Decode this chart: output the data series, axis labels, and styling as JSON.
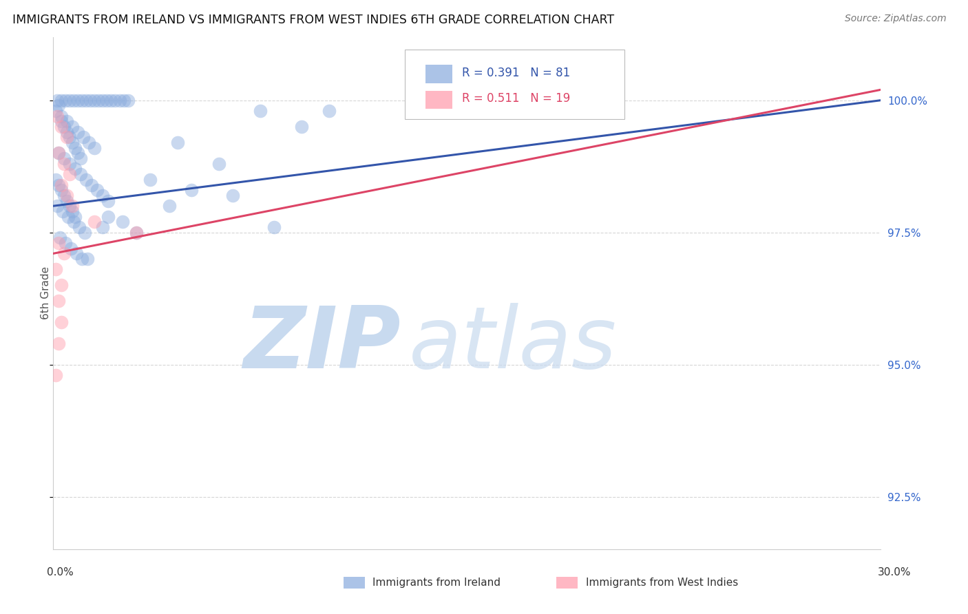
{
  "title": "IMMIGRANTS FROM IRELAND VS IMMIGRANTS FROM WEST INDIES 6TH GRADE CORRELATION CHART",
  "source": "Source: ZipAtlas.com",
  "ylabel": "6th Grade",
  "yticks": [
    92.5,
    95.0,
    97.5,
    100.0
  ],
  "ytick_labels": [
    "92.5%",
    "95.0%",
    "97.5%",
    "100.0%"
  ],
  "xmin": 0.0,
  "xmax": 30.0,
  "ymin": 91.5,
  "ymax": 101.2,
  "blue_R": 0.391,
  "blue_N": 81,
  "pink_R": 0.511,
  "pink_N": 19,
  "blue_color": "#88AADD",
  "pink_color": "#FF99AA",
  "blue_line_color": "#3355AA",
  "pink_line_color": "#DD4466",
  "watermark_zip_color": "#C8DAEF",
  "watermark_atlas_color": "#C8DAEF",
  "legend_label_blue": "Immigrants from Ireland",
  "legend_label_pink": "Immigrants from West Indies",
  "blue_scatter": [
    [
      0.15,
      100.0
    ],
    [
      0.3,
      100.0
    ],
    [
      0.45,
      100.0
    ],
    [
      0.6,
      100.0
    ],
    [
      0.75,
      100.0
    ],
    [
      0.9,
      100.0
    ],
    [
      1.05,
      100.0
    ],
    [
      1.2,
      100.0
    ],
    [
      1.35,
      100.0
    ],
    [
      1.5,
      100.0
    ],
    [
      1.65,
      100.0
    ],
    [
      1.8,
      100.0
    ],
    [
      1.95,
      100.0
    ],
    [
      2.1,
      100.0
    ],
    [
      2.25,
      100.0
    ],
    [
      2.4,
      100.0
    ],
    [
      2.55,
      100.0
    ],
    [
      2.7,
      100.0
    ],
    [
      0.3,
      99.7
    ],
    [
      0.5,
      99.6
    ],
    [
      0.7,
      99.5
    ],
    [
      0.9,
      99.4
    ],
    [
      1.1,
      99.3
    ],
    [
      1.3,
      99.2
    ],
    [
      1.5,
      99.1
    ],
    [
      0.2,
      99.0
    ],
    [
      0.4,
      98.9
    ],
    [
      0.6,
      98.8
    ],
    [
      0.8,
      98.7
    ],
    [
      1.0,
      98.6
    ],
    [
      1.2,
      98.5
    ],
    [
      1.4,
      98.4
    ],
    [
      1.6,
      98.3
    ],
    [
      1.8,
      98.2
    ],
    [
      2.0,
      98.1
    ],
    [
      0.15,
      98.0
    ],
    [
      0.35,
      97.9
    ],
    [
      0.55,
      97.8
    ],
    [
      0.75,
      97.7
    ],
    [
      0.95,
      97.6
    ],
    [
      1.15,
      97.5
    ],
    [
      0.25,
      97.4
    ],
    [
      0.45,
      97.3
    ],
    [
      0.65,
      97.2
    ],
    [
      0.85,
      97.1
    ],
    [
      1.05,
      97.0
    ],
    [
      1.25,
      97.0
    ],
    [
      0.1,
      98.5
    ],
    [
      0.2,
      98.4
    ],
    [
      0.3,
      98.3
    ],
    [
      0.4,
      98.2
    ],
    [
      0.5,
      98.1
    ],
    [
      0.6,
      98.0
    ],
    [
      0.7,
      97.9
    ],
    [
      0.8,
      97.8
    ],
    [
      3.5,
      98.5
    ],
    [
      5.0,
      98.3
    ],
    [
      4.2,
      98.0
    ],
    [
      6.5,
      98.2
    ],
    [
      7.5,
      99.8
    ],
    [
      9.0,
      99.5
    ],
    [
      3.0,
      97.5
    ],
    [
      2.5,
      97.7
    ],
    [
      2.0,
      97.8
    ],
    [
      1.8,
      97.6
    ],
    [
      4.5,
      99.2
    ],
    [
      6.0,
      98.8
    ],
    [
      8.0,
      97.6
    ],
    [
      10.0,
      99.8
    ],
    [
      14.0,
      100.0
    ],
    [
      20.0,
      100.0
    ],
    [
      0.1,
      99.8
    ],
    [
      0.2,
      99.9
    ],
    [
      0.3,
      99.6
    ],
    [
      0.4,
      99.5
    ],
    [
      0.5,
      99.4
    ],
    [
      0.6,
      99.3
    ],
    [
      0.7,
      99.2
    ],
    [
      0.8,
      99.1
    ],
    [
      0.9,
      99.0
    ],
    [
      1.0,
      98.9
    ]
  ],
  "pink_scatter": [
    [
      0.15,
      99.7
    ],
    [
      0.3,
      99.5
    ],
    [
      0.5,
      99.3
    ],
    [
      0.2,
      99.0
    ],
    [
      0.4,
      98.8
    ],
    [
      0.6,
      98.6
    ],
    [
      0.3,
      98.4
    ],
    [
      0.5,
      98.2
    ],
    [
      0.7,
      98.0
    ],
    [
      1.5,
      97.7
    ],
    [
      3.0,
      97.5
    ],
    [
      0.2,
      97.3
    ],
    [
      0.4,
      97.1
    ],
    [
      0.1,
      96.8
    ],
    [
      0.3,
      96.5
    ],
    [
      0.2,
      96.2
    ],
    [
      0.3,
      95.8
    ],
    [
      0.2,
      95.4
    ],
    [
      0.1,
      94.8
    ]
  ],
  "blue_line_x": [
    0.0,
    30.0
  ],
  "blue_line_y": [
    98.0,
    100.0
  ],
  "pink_line_x": [
    0.0,
    30.0
  ],
  "pink_line_y": [
    97.1,
    100.2
  ]
}
